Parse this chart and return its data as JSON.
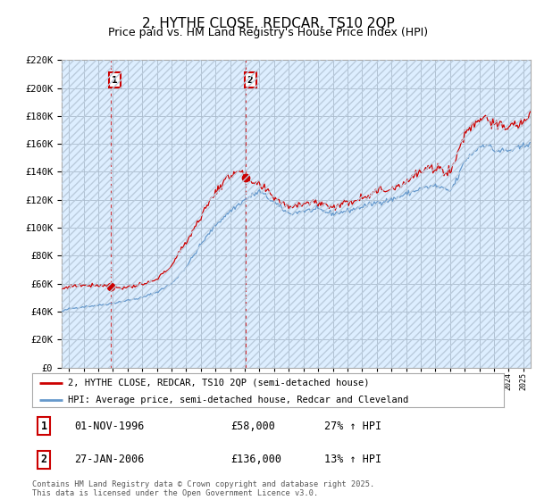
{
  "title": "2, HYTHE CLOSE, REDCAR, TS10 2QP",
  "subtitle": "Price paid vs. HM Land Registry's House Price Index (HPI)",
  "legend_line1": "2, HYTHE CLOSE, REDCAR, TS10 2QP (semi-detached house)",
  "legend_line2": "HPI: Average price, semi-detached house, Redcar and Cleveland",
  "footer": "Contains HM Land Registry data © Crown copyright and database right 2025.\nThis data is licensed under the Open Government Licence v3.0.",
  "annotation1_date": "01-NOV-1996",
  "annotation1_price": "£58,000",
  "annotation1_hpi": "27% ↑ HPI",
  "annotation2_date": "27-JAN-2006",
  "annotation2_price": "£136,000",
  "annotation2_hpi": "13% ↑ HPI",
  "sale1_x": 1996.83,
  "sale1_y": 58000,
  "sale2_x": 2006.07,
  "sale2_y": 136000,
  "hpi_color": "#6699cc",
  "price_color": "#cc0000",
  "vline_color": "#cc0000",
  "bg_plot_color": "#ddeeff",
  "ylim": [
    0,
    220000
  ],
  "xlim_start": 1993.5,
  "xlim_end": 2025.5,
  "background_color": "#ffffff",
  "grid_color": "#aabbcc",
  "title_fontsize": 11,
  "subtitle_fontsize": 9,
  "figsize": [
    6.0,
    5.6
  ],
  "dpi": 100,
  "hpi_anchors_x": [
    1993.5,
    1994.0,
    1995.0,
    1996.0,
    1997.0,
    1998.0,
    1999.0,
    2000.0,
    2001.0,
    2002.0,
    2003.0,
    2004.0,
    2005.0,
    2006.0,
    2007.0,
    2007.5,
    2008.0,
    2009.0,
    2010.0,
    2011.0,
    2012.0,
    2013.0,
    2014.0,
    2015.0,
    2016.0,
    2017.0,
    2018.0,
    2019.0,
    2020.0,
    2020.5,
    2021.0,
    2022.0,
    2022.5,
    2023.0,
    2024.0,
    2025.0,
    2025.5
  ],
  "hpi_anchors_y": [
    40000,
    42000,
    43500,
    44500,
    46000,
    48000,
    50000,
    54000,
    60000,
    72000,
    88000,
    102000,
    112000,
    120000,
    126000,
    122000,
    118000,
    110000,
    112000,
    113000,
    110000,
    112000,
    115000,
    118000,
    120000,
    124000,
    128000,
    130000,
    126000,
    135000,
    148000,
    158000,
    160000,
    155000,
    155000,
    158000,
    162000
  ],
  "price_anchors_x": [
    1993.5,
    1994.0,
    1995.0,
    1996.0,
    1996.83,
    1997.5,
    1998.0,
    1999.0,
    2000.0,
    2001.0,
    2002.0,
    2003.0,
    2004.0,
    2005.0,
    2005.5,
    2006.07,
    2006.5,
    2007.0,
    2007.5,
    2008.0,
    2009.0,
    2010.0,
    2011.0,
    2012.0,
    2013.0,
    2014.0,
    2015.0,
    2016.0,
    2017.0,
    2018.0,
    2019.0,
    2020.0,
    2020.5,
    2021.0,
    2022.0,
    2022.5,
    2023.0,
    2024.0,
    2025.0,
    2025.5
  ],
  "price_anchors_y": [
    56000,
    58000,
    59000,
    59000,
    58000,
    57000,
    57500,
    59000,
    63000,
    73000,
    90000,
    108000,
    126000,
    137000,
    142000,
    136000,
    132000,
    130000,
    126000,
    122000,
    115000,
    118000,
    118000,
    115000,
    118000,
    122000,
    126000,
    128000,
    133000,
    140000,
    143000,
    140000,
    152000,
    168000,
    178000,
    180000,
    173000,
    172000,
    175000,
    182000
  ]
}
